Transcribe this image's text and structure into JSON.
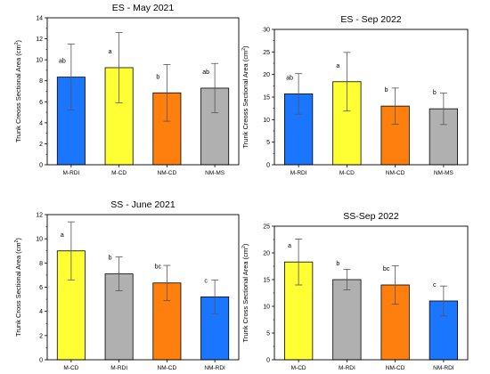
{
  "chart_data": [
    {
      "type": "bar",
      "title": "ES - May 2021",
      "ylabel": "Trunk Creoss Sectional Area (cm",
      "ylabel_sup": "2",
      "ylabel_end": ")",
      "ylim": [
        0,
        14
      ],
      "yticks": [
        0,
        2,
        4,
        6,
        8,
        10,
        12,
        14
      ],
      "categories": [
        "M-RDI",
        "M-CD",
        "NM-CD",
        "NM-MS"
      ],
      "values": [
        8.35,
        9.25,
        6.85,
        7.3
      ],
      "errors": [
        3.15,
        3.35,
        2.7,
        2.35
      ],
      "letters": [
        "ab",
        "a",
        "b",
        "ab"
      ],
      "colors": [
        "#1a75ff",
        "#ffff33",
        "#ff7f0e",
        "#b0b0b0"
      ]
    },
    {
      "type": "bar",
      "title": "ES - Sep 2022",
      "ylabel": "Trunk Creoss Sectional Area (cm",
      "ylabel_sup": "2",
      "ylabel_end": ")",
      "ylim": [
        0,
        30
      ],
      "yticks": [
        0,
        5,
        10,
        15,
        20,
        25,
        30
      ],
      "categories": [
        "M-RDI",
        "M-CD",
        "NM-CD",
        "NM-MS"
      ],
      "values": [
        15.7,
        18.4,
        13.0,
        12.4
      ],
      "errors": [
        4.5,
        6.5,
        4.0,
        3.5
      ],
      "letters": [
        "ab",
        "a",
        "b",
        "b"
      ],
      "colors": [
        "#1a75ff",
        "#ffff33",
        "#ff7f0e",
        "#b0b0b0"
      ]
    },
    {
      "type": "bar",
      "title": "SS - June 2021",
      "ylabel": "Trunk Cross Sectional Area (cm",
      "ylabel_sup": "2",
      "ylabel_end": ")",
      "ylim": [
        0,
        12
      ],
      "yticks": [
        0,
        2,
        4,
        6,
        8,
        10,
        12
      ],
      "categories": [
        "M-CD",
        "M-RDI",
        "NM-CD",
        "NM-RDI"
      ],
      "values": [
        9.0,
        7.1,
        6.35,
        5.2
      ],
      "errors": [
        2.4,
        1.4,
        1.45,
        1.4
      ],
      "letters": [
        "a",
        "b",
        "bc",
        "c"
      ],
      "colors": [
        "#ffff33",
        "#b0b0b0",
        "#ff7f0e",
        "#1a75ff"
      ]
    },
    {
      "type": "bar",
      "title": "SS-Sep 2022",
      "ylabel": "Trunk Cross Sectional Area (cm",
      "ylabel_sup": "2",
      "ylabel_end": ")",
      "ylim": [
        0,
        25
      ],
      "yticks": [
        0,
        5,
        10,
        15,
        20,
        25
      ],
      "categories": [
        "M-CD",
        "M-RDI",
        "NM-CD",
        "NM-RDI"
      ],
      "values": [
        18.3,
        15.0,
        14.0,
        11.0
      ],
      "errors": [
        4.3,
        1.9,
        3.6,
        2.8
      ],
      "letters": [
        "a",
        "b",
        "bc",
        "c"
      ],
      "colors": [
        "#ffff33",
        "#b0b0b0",
        "#ff7f0e",
        "#1a75ff"
      ]
    }
  ]
}
